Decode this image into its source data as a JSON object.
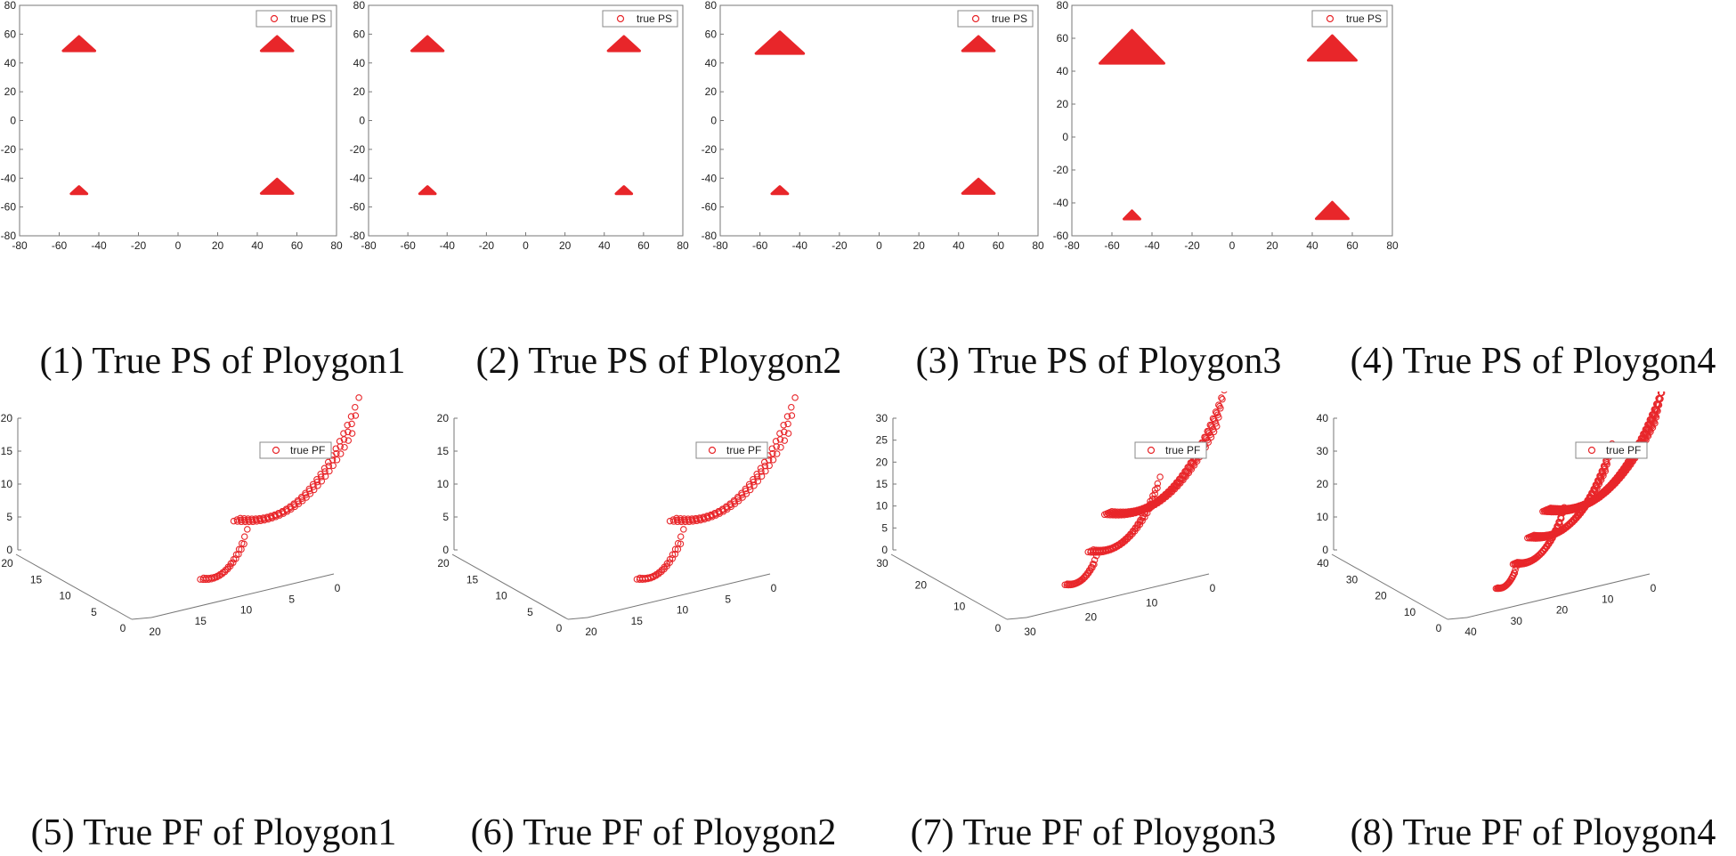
{
  "chart_data": [
    {
      "type": "scatter",
      "id": "ps1",
      "title": "(1) True PS of Ploygon1",
      "legend": "true PS",
      "legend_position": "top-right",
      "marker_color": "#e8262a",
      "xlim": [
        -80,
        80
      ],
      "ylim": [
        -80,
        80
      ],
      "xticks": [
        -80,
        -60,
        -40,
        -20,
        0,
        20,
        40,
        60,
        80
      ],
      "yticks": [
        -80,
        -60,
        -40,
        -20,
        0,
        20,
        40,
        60,
        80
      ],
      "series": [
        {
          "name": "true PS",
          "regions": [
            {
              "cx": -50,
              "cy": 52,
              "r": 8
            },
            {
              "cx": 50,
              "cy": 52,
              "r": 8
            },
            {
              "cx": -50,
              "cy": -49,
              "r": 4
            },
            {
              "cx": 50,
              "cy": -47,
              "r": 8
            }
          ]
        }
      ]
    },
    {
      "type": "scatter",
      "id": "ps2",
      "title": "(2) True PS of Ploygon2",
      "legend": "true PS",
      "legend_position": "top-right",
      "marker_color": "#e8262a",
      "xlim": [
        -80,
        80
      ],
      "ylim": [
        -80,
        80
      ],
      "xticks": [
        -80,
        -60,
        -40,
        -20,
        0,
        20,
        40,
        60,
        80
      ],
      "yticks": [
        -80,
        -60,
        -40,
        -20,
        0,
        20,
        40,
        60,
        80
      ],
      "series": [
        {
          "name": "true PS",
          "regions": [
            {
              "cx": -50,
              "cy": 52,
              "r": 8
            },
            {
              "cx": 50,
              "cy": 52,
              "r": 8
            },
            {
              "cx": -50,
              "cy": -49,
              "r": 4
            },
            {
              "cx": 50,
              "cy": -49,
              "r": 4
            }
          ]
        }
      ]
    },
    {
      "type": "scatter",
      "id": "ps3",
      "title": "(3) True PS of Ploygon3",
      "legend": "true PS",
      "legend_position": "top-right",
      "marker_color": "#e8262a",
      "xlim": [
        -80,
        80
      ],
      "ylim": [
        -80,
        80
      ],
      "xticks": [
        -80,
        -60,
        -40,
        -20,
        0,
        20,
        40,
        60,
        80
      ],
      "yticks": [
        -80,
        -60,
        -40,
        -20,
        0,
        20,
        40,
        60,
        80
      ],
      "series": [
        {
          "name": "true PS",
          "regions": [
            {
              "cx": -50,
              "cy": 52,
              "r": 12
            },
            {
              "cx": 50,
              "cy": 52,
              "r": 8
            },
            {
              "cx": -50,
              "cy": -49,
              "r": 4
            },
            {
              "cx": 50,
              "cy": -47,
              "r": 8
            }
          ]
        }
      ]
    },
    {
      "type": "scatter",
      "id": "ps4",
      "title": "(4) True PS of Ploygon4",
      "legend": "true PS",
      "legend_position": "top-right",
      "marker_color": "#e8262a",
      "xlim": [
        -80,
        80
      ],
      "ylim": [
        -60,
        80
      ],
      "xticks": [
        -80,
        -60,
        -40,
        -20,
        0,
        20,
        40,
        60,
        80
      ],
      "yticks": [
        -60,
        -40,
        -20,
        0,
        20,
        40,
        60,
        80
      ],
      "series": [
        {
          "name": "true PS",
          "regions": [
            {
              "cx": -50,
              "cy": 52,
              "r": 16
            },
            {
              "cx": 50,
              "cy": 52,
              "r": 12
            },
            {
              "cx": -50,
              "cy": -48,
              "r": 4
            },
            {
              "cx": 50,
              "cy": -46,
              "r": 8
            }
          ]
        }
      ]
    },
    {
      "type": "scatter3d",
      "id": "pf1",
      "title": "(5) True PF of Ploygon1",
      "legend": "true PF",
      "legend_position": "right",
      "marker_color": "#e8262a",
      "zticks": [
        0,
        5,
        10,
        15,
        20
      ],
      "xticks": [
        0,
        5,
        10,
        15,
        20
      ],
      "yticks": [
        0,
        5,
        10,
        15,
        20
      ],
      "fronts": [
        {
          "x0": 2,
          "y0": 13,
          "len": 19,
          "w": 0.9,
          "z": 20
        },
        {
          "x0": 13,
          "y0": 2,
          "len": 7,
          "w": 0.45,
          "z": 8
        }
      ]
    },
    {
      "type": "scatter3d",
      "id": "pf2",
      "title": "(6) True PF of Ploygon2",
      "legend": "true PF",
      "legend_position": "right",
      "marker_color": "#e8262a",
      "zticks": [
        0,
        5,
        10,
        15,
        20
      ],
      "xticks": [
        0,
        5,
        10,
        15,
        20
      ],
      "yticks": [
        0,
        5,
        10,
        15,
        20
      ],
      "fronts": [
        {
          "x0": 2,
          "y0": 13,
          "len": 19,
          "w": 0.9,
          "z": 20
        },
        {
          "x0": 13,
          "y0": 2,
          "len": 7,
          "w": 0.4,
          "z": 8
        }
      ]
    },
    {
      "type": "scatter3d",
      "id": "pf3",
      "title": "(7) True PF of Ploygon3",
      "legend": "true PF",
      "legend_position": "right",
      "marker_color": "#e8262a",
      "zticks": [
        0,
        5,
        10,
        15,
        20,
        25,
        30
      ],
      "xticks": [
        0,
        10,
        20,
        30
      ],
      "yticks": [
        0,
        10,
        20,
        30
      ],
      "fronts": [
        {
          "x0": 2,
          "y0": 22,
          "len": 27,
          "w": 1.5,
          "z": 30
        },
        {
          "x0": 12,
          "y0": 11,
          "len": 16,
          "w": 1.1,
          "z": 18
        },
        {
          "x0": 22,
          "y0": 2,
          "len": 7,
          "w": 0.5,
          "z": 7
        }
      ]
    },
    {
      "type": "scatter3d",
      "id": "pf4",
      "title": "(8) True PF of Ploygon4",
      "legend": "true PF",
      "legend_position": "right",
      "marker_color": "#e8262a",
      "zticks": [
        0,
        10,
        20,
        30,
        40
      ],
      "xticks": [
        0,
        10,
        20,
        30,
        40
      ],
      "yticks": [
        0,
        10,
        20,
        30,
        40
      ],
      "fronts": [
        {
          "x0": 2,
          "y0": 31,
          "len": 36,
          "w": 2.2,
          "z": 40
        },
        {
          "x0": 12,
          "y0": 21,
          "len": 25,
          "w": 1.8,
          "z": 30
        },
        {
          "x0": 22,
          "y0": 11,
          "len": 15,
          "w": 1.2,
          "z": 18
        },
        {
          "x0": 32,
          "y0": 2,
          "len": 6,
          "w": 0.5,
          "z": 7
        }
      ]
    }
  ]
}
